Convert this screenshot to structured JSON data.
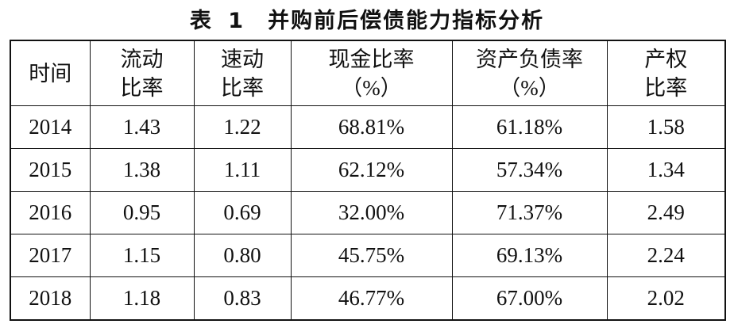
{
  "title": "表 1　并购前后偿债能力指标分析",
  "table": {
    "header": [
      [
        "时间"
      ],
      [
        "流动",
        "比率"
      ],
      [
        "速动",
        "比率"
      ],
      [
        "现金比率",
        "（%）"
      ],
      [
        "资产负债率",
        "（%）"
      ],
      [
        "产权",
        "比率"
      ]
    ],
    "rows": [
      [
        "2014",
        "1.43",
        "1.22",
        "68.81%",
        "61.18%",
        "1.58"
      ],
      [
        "2015",
        "1.38",
        "1.11",
        "62.12%",
        "57.34%",
        "1.34"
      ],
      [
        "2016",
        "0.95",
        "0.69",
        "32.00%",
        "71.37%",
        "2.49"
      ],
      [
        "2017",
        "1.15",
        "0.80",
        "45.75%",
        "69.13%",
        "2.24"
      ],
      [
        "2018",
        "1.18",
        "0.83",
        "46.77%",
        "67.00%",
        "2.02"
      ]
    ]
  }
}
